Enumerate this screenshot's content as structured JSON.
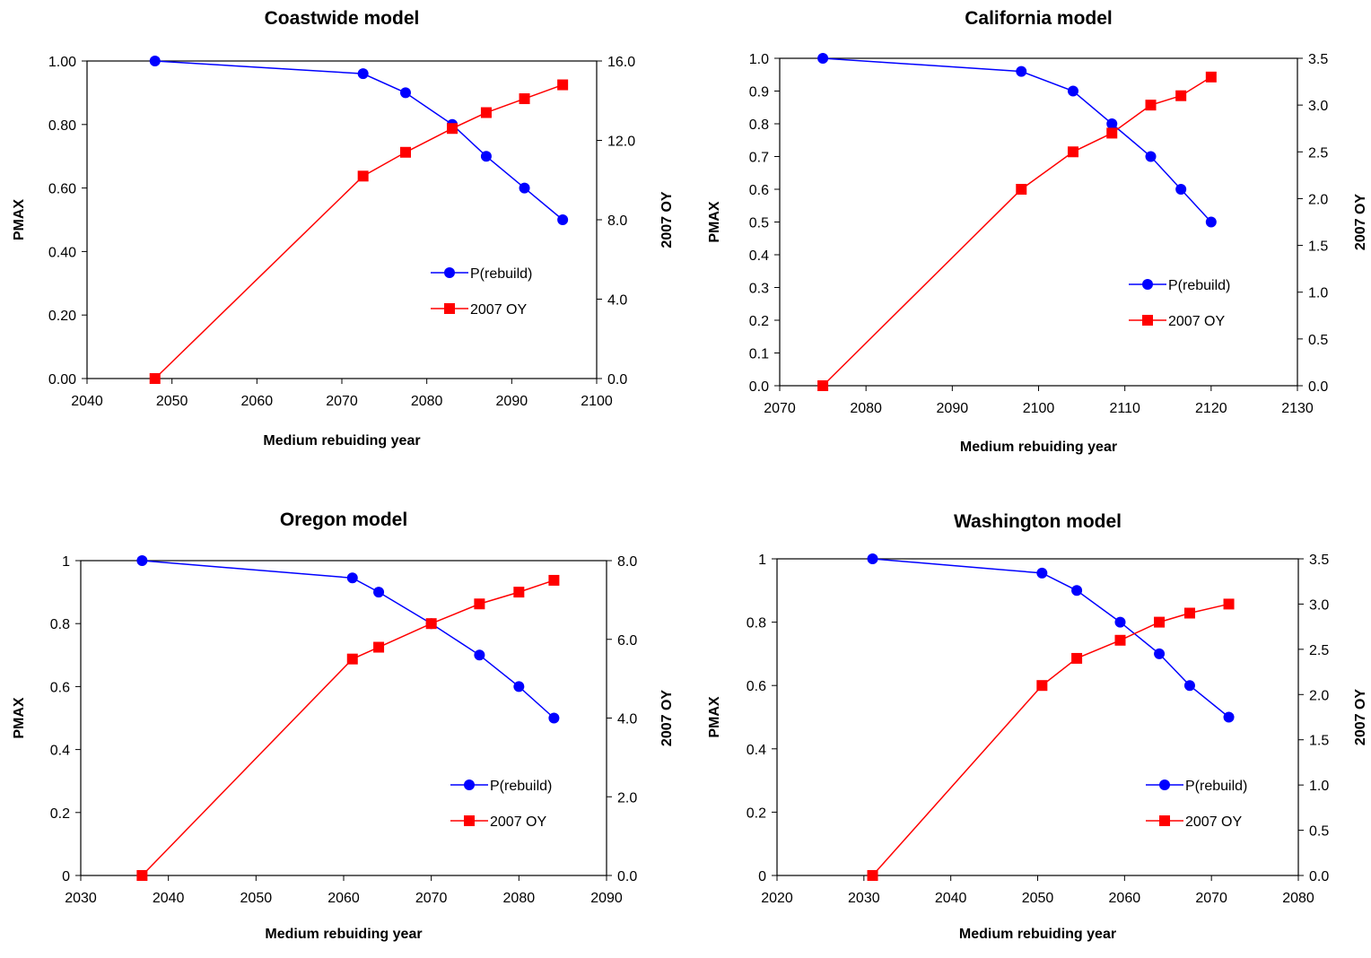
{
  "colors": {
    "p_rebuild": "#0000FF",
    "oy": "#FF0000",
    "axis": "#000000"
  },
  "chart_data": [
    {
      "type": "line",
      "title": "Coastwide model",
      "xlabel": "Medium rebuiding year",
      "ylabel": "PMAX",
      "y2label": "2007 OY",
      "xlim": [
        2040,
        2100
      ],
      "xticks": [
        2040,
        2050,
        2060,
        2070,
        2080,
        2090,
        2100
      ],
      "xtick_labels": [
        "2040",
        "2050",
        "2060",
        "2070",
        "2080",
        "2090",
        "2100"
      ],
      "ylim": [
        0,
        1
      ],
      "yticks": [
        0,
        0.2,
        0.4,
        0.6,
        0.8,
        1.0
      ],
      "ytick_labels": [
        "0.00",
        "0.20",
        "0.40",
        "0.60",
        "0.80",
        "1.00"
      ],
      "y2lim": [
        0,
        16
      ],
      "y2ticks": [
        0,
        4,
        8,
        12,
        16
      ],
      "y2tick_labels": [
        "0.0",
        "4.0",
        "8.0",
        "12.0",
        "16.0"
      ],
      "legend_position": "right",
      "series": [
        {
          "name": "P(rebuild)",
          "axis": "left",
          "marker": "circle",
          "x": [
            2048,
            2072.5,
            2077.5,
            2083,
            2087,
            2091.5,
            2096
          ],
          "y": [
            1.0,
            0.96,
            0.9,
            0.8,
            0.7,
            0.6,
            0.5
          ]
        },
        {
          "name": "2007 OY",
          "axis": "right",
          "marker": "square",
          "x": [
            2048,
            2072.5,
            2077.5,
            2083,
            2087,
            2091.5,
            2096
          ],
          "y": [
            0.0,
            10.2,
            11.4,
            12.6,
            13.4,
            14.1,
            14.8
          ]
        }
      ]
    },
    {
      "type": "line",
      "title": "California model",
      "xlabel": "Medium rebuiding year",
      "ylabel": "PMAX",
      "y2label": "2007 OY",
      "xlim": [
        2070,
        2130
      ],
      "xticks": [
        2070,
        2080,
        2090,
        2100,
        2110,
        2120,
        2130
      ],
      "xtick_labels": [
        "2070",
        "2080",
        "2090",
        "2100",
        "2110",
        "2120",
        "2130"
      ],
      "ylim": [
        0,
        1
      ],
      "yticks": [
        0,
        0.1,
        0.2,
        0.3,
        0.4,
        0.5,
        0.6,
        0.7,
        0.8,
        0.9,
        1.0
      ],
      "ytick_labels": [
        "0.0",
        "0.1",
        "0.2",
        "0.3",
        "0.4",
        "0.5",
        "0.6",
        "0.7",
        "0.8",
        "0.9",
        "1.0"
      ],
      "y2lim": [
        0,
        3.5
      ],
      "y2ticks": [
        0,
        0.5,
        1,
        1.5,
        2,
        2.5,
        3,
        3.5
      ],
      "y2tick_labels": [
        "0.0",
        "0.5",
        "1.0",
        "1.5",
        "2.0",
        "2.5",
        "3.0",
        "3.5"
      ],
      "legend_position": "right",
      "series": [
        {
          "name": "P(rebuild)",
          "axis": "left",
          "marker": "circle",
          "x": [
            2075,
            2098,
            2104,
            2108.5,
            2113,
            2116.5,
            2120
          ],
          "y": [
            1.0,
            0.96,
            0.9,
            0.8,
            0.7,
            0.6,
            0.5
          ]
        },
        {
          "name": "2007 OY",
          "axis": "right",
          "marker": "square",
          "x": [
            2075,
            2098,
            2104,
            2108.5,
            2113,
            2116.5,
            2120
          ],
          "y": [
            0.0,
            2.1,
            2.5,
            2.7,
            3.0,
            3.1,
            3.3
          ]
        }
      ]
    },
    {
      "type": "line",
      "title": "Oregon model",
      "xlabel": "Medium rebuiding year",
      "ylabel": "PMAX",
      "y2label": "2007 OY",
      "xlim": [
        2030,
        2090
      ],
      "xticks": [
        2030,
        2040,
        2050,
        2060,
        2070,
        2080,
        2090
      ],
      "xtick_labels": [
        "2030",
        "2040",
        "2050",
        "2060",
        "2070",
        "2080",
        "2090"
      ],
      "ylim": [
        0,
        1
      ],
      "yticks": [
        0,
        0.2,
        0.4,
        0.6,
        0.8,
        1
      ],
      "ytick_labels": [
        "0",
        "0.2",
        "0.4",
        "0.6",
        "0.8",
        "1"
      ],
      "y2lim": [
        0,
        8
      ],
      "y2ticks": [
        0,
        2,
        4,
        6,
        8
      ],
      "y2tick_labels": [
        "0.0",
        "2.0",
        "4.0",
        "6.0",
        "8.0"
      ],
      "legend_position": "right",
      "series": [
        {
          "name": "P(rebuild)",
          "axis": "left",
          "marker": "circle",
          "x": [
            2037,
            2061,
            2064,
            2070,
            2075.5,
            2080,
            2084
          ],
          "y": [
            1.0,
            0.945,
            0.9,
            0.8,
            0.7,
            0.6,
            0.5
          ]
        },
        {
          "name": "2007 OY",
          "axis": "right",
          "marker": "square",
          "x": [
            2037,
            2061,
            2064,
            2070,
            2075.5,
            2080,
            2084
          ],
          "y": [
            0.0,
            5.5,
            5.8,
            6.4,
            6.9,
            7.2,
            7.5
          ]
        }
      ]
    },
    {
      "type": "line",
      "title": "Washington model",
      "xlabel": "Medium rebuiding year",
      "ylabel": "PMAX",
      "y2label": "2007 OY",
      "xlim": [
        2020,
        2080
      ],
      "xticks": [
        2020,
        2030,
        2040,
        2050,
        2060,
        2070,
        2080
      ],
      "xtick_labels": [
        "2020",
        "2030",
        "2040",
        "2050",
        "2060",
        "2070",
        "2080"
      ],
      "ylim": [
        0,
        1
      ],
      "yticks": [
        0,
        0.2,
        0.4,
        0.6,
        0.8,
        1
      ],
      "ytick_labels": [
        "0",
        "0.2",
        "0.4",
        "0.6",
        "0.8",
        "1"
      ],
      "y2lim": [
        0,
        3.5
      ],
      "y2ticks": [
        0,
        0.5,
        1,
        1.5,
        2,
        2.5,
        3,
        3.5
      ],
      "y2tick_labels": [
        "0.0",
        "0.5",
        "1.0",
        "1.5",
        "2.0",
        "2.5",
        "3.0",
        "3.5"
      ],
      "legend_position": "right",
      "series": [
        {
          "name": "P(rebuild)",
          "axis": "left",
          "marker": "circle",
          "x": [
            2031,
            2050.5,
            2054.5,
            2059.5,
            2064,
            2067.5,
            2072
          ],
          "y": [
            1.0,
            0.955,
            0.9,
            0.8,
            0.7,
            0.6,
            0.5
          ]
        },
        {
          "name": "2007 OY",
          "axis": "right",
          "marker": "square",
          "x": [
            2031,
            2050.5,
            2054.5,
            2059.5,
            2064,
            2067.5,
            2072
          ],
          "y": [
            0.0,
            2.1,
            2.4,
            2.6,
            2.8,
            2.9,
            3.0
          ]
        }
      ]
    }
  ]
}
